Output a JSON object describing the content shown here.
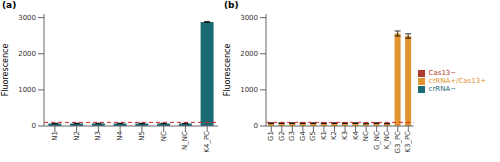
{
  "chart_data": [
    {
      "type": "bar",
      "title": "(a)",
      "y_label": "Fluorescence",
      "categories": [
        "N1",
        "N2",
        "N3",
        "N4",
        "N5",
        "NC",
        "N_NC",
        "K4_PC"
      ],
      "values": [
        70,
        70,
        70,
        70,
        70,
        70,
        70,
        2880
      ],
      "errors": [
        8,
        8,
        8,
        8,
        8,
        8,
        8,
        15
      ],
      "color": "#1b6b75",
      "threshold": 100,
      "ylim": [
        0,
        3100
      ],
      "yticks": [
        0,
        1000,
        2000,
        3000
      ]
    },
    {
      "type": "bar",
      "title": "(b)",
      "y_label": "Fluorescence",
      "categories": [
        "G1",
        "G2",
        "G3",
        "G4",
        "G5",
        "K1",
        "K2",
        "K3",
        "K4",
        "NC",
        "G_NC",
        "K_NC",
        "G3_PC",
        "K3_PC"
      ],
      "series": [
        {
          "name": "Cas13−",
          "color": "#b03a2e",
          "values": [
            null,
            null,
            null,
            null,
            null,
            null,
            null,
            null,
            null,
            null,
            null,
            null,
            null,
            null
          ]
        },
        {
          "name": "crRNA−",
          "color": "#1b6b75",
          "values": [
            null,
            null,
            null,
            null,
            null,
            null,
            null,
            null,
            null,
            null,
            null,
            null,
            null,
            null
          ]
        },
        {
          "name": "crRNA+/Cas13+",
          "color": "#e0952f",
          "values": [
            80,
            80,
            80,
            80,
            80,
            80,
            80,
            80,
            80,
            70,
            80,
            70,
            2560,
            2490
          ],
          "errors": [
            10,
            10,
            10,
            10,
            10,
            10,
            10,
            10,
            10,
            8,
            10,
            8,
            70,
            60
          ]
        }
      ],
      "threshold": 100,
      "ylim": [
        0,
        3100
      ],
      "yticks": [
        0,
        1000,
        2000,
        3000
      ],
      "legend": "right"
    }
  ]
}
